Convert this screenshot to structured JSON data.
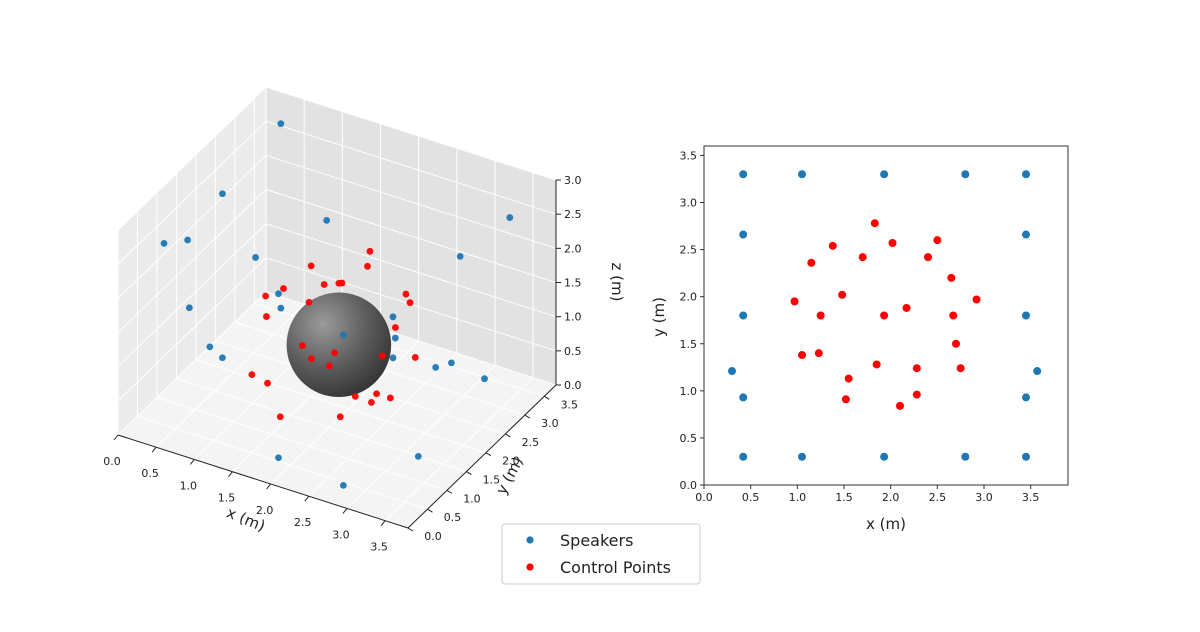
{
  "colors": {
    "speakers": "#1f77b4",
    "control": "#ff0000",
    "sphere": "#555555",
    "pane": "#f2f2f2",
    "grid": "#dddddd"
  },
  "legend": {
    "placement": "bottom-center",
    "items": [
      "Speakers",
      "Control Points"
    ]
  },
  "chart_data": [
    {
      "type": "scatter3d",
      "xlabel": "x (m)",
      "ylabel": "y (m)",
      "zlabel": "z (m)",
      "xlim": [
        0,
        3.8
      ],
      "ylim": [
        0,
        3.8
      ],
      "zlim": [
        0,
        3.0
      ],
      "xticks": [
        "0.0",
        "0.5",
        "1.0",
        "1.5",
        "2.0",
        "2.5",
        "3.0",
        "3.5"
      ],
      "yticks": [
        "0.0",
        "0.5",
        "1.0",
        "1.5",
        "2.0",
        "2.5",
        "3.0",
        "3.5"
      ],
      "zticks": [
        "0.0",
        "0.5",
        "1.0",
        "1.5",
        "2.0",
        "2.5",
        "3.0"
      ],
      "sphere": {
        "center": [
          1.95,
          1.85,
          1.0
        ],
        "radius": 0.9
      },
      "series": [
        {
          "name": "Speakers",
          "points": [
            [
              0.45,
              3.3,
              2.9
            ],
            [
              1.05,
              3.3,
              1.7
            ],
            [
              1.95,
              3.3,
              0.3
            ],
            [
              2.8,
              3.3,
              1.8
            ],
            [
              3.45,
              3.3,
              2.6
            ],
            [
              0.45,
              2.65,
              1.3
            ],
            [
              0.45,
              1.8,
              0.3
            ],
            [
              0.45,
              0.95,
              1.5
            ],
            [
              0.3,
              1.2,
              2.3
            ],
            [
              3.45,
              2.65,
              0.6
            ],
            [
              3.45,
              1.8,
              1.3
            ],
            [
              3.45,
              0.95,
              0.4
            ],
            [
              3.55,
              1.2,
              1.6
            ],
            [
              1.05,
              0.3,
              1.5
            ],
            [
              1.95,
              0.3,
              0.2
            ],
            [
              2.8,
              0.3,
              2.3
            ],
            [
              3.45,
              0.3,
              2.2
            ],
            [
              0.45,
              0.3,
              2.8
            ],
            [
              1.95,
              0.3,
              2.6
            ],
            [
              3.45,
              0.3,
              2.8
            ],
            [
              0.45,
              3.3,
              0.2
            ],
            [
              2.8,
              0.3,
              0.1
            ],
            [
              1.05,
              3.3,
              0.2
            ],
            [
              0.45,
              1.8,
              2.7
            ]
          ]
        },
        {
          "name": "Control Points",
          "points": [
            [
              1.85,
              2.78,
              1.6
            ],
            [
              2.5,
              2.6,
              1.4
            ],
            [
              1.4,
              2.55,
              1.3
            ],
            [
              2.0,
              2.55,
              2.0
            ],
            [
              1.7,
              2.42,
              1.5
            ],
            [
              2.4,
              2.42,
              1.1
            ],
            [
              1.15,
              2.35,
              0.7
            ],
            [
              2.65,
              2.2,
              1.8
            ],
            [
              0.95,
              1.95,
              1.0
            ],
            [
              1.5,
              2.02,
              1.9
            ],
            [
              2.9,
              1.95,
              1.1
            ],
            [
              2.15,
              1.88,
              0.3
            ],
            [
              1.25,
              1.8,
              1.6
            ],
            [
              1.92,
              1.8,
              0.9
            ],
            [
              2.65,
              1.8,
              0.5
            ],
            [
              2.7,
              1.5,
              1.3
            ],
            [
              1.05,
              1.38,
              0.5
            ],
            [
              1.22,
              1.4,
              1.7
            ],
            [
              1.85,
              1.28,
              1.9
            ],
            [
              2.75,
              1.25,
              0.9
            ],
            [
              2.28,
              1.24,
              0.4
            ],
            [
              1.55,
              1.13,
              0.2
            ],
            [
              2.28,
              0.96,
              1.3
            ],
            [
              1.5,
              0.9,
              0.8
            ],
            [
              2.1,
              0.85,
              1.4
            ],
            [
              1.95,
              1.85,
              1.9
            ],
            [
              1.6,
              1.6,
              1.0
            ],
            [
              2.3,
              2.0,
              0.2
            ]
          ]
        }
      ]
    },
    {
      "type": "scatter",
      "xlabel": "x (m)",
      "ylabel": "y (m)",
      "xlim": [
        0,
        3.9
      ],
      "ylim": [
        0,
        3.6
      ],
      "xticks": [
        0.0,
        0.5,
        1.0,
        1.5,
        2.0,
        2.5,
        3.0,
        3.5
      ],
      "yticks": [
        0.0,
        0.5,
        1.0,
        1.5,
        2.0,
        2.5,
        3.0,
        3.5
      ],
      "series": [
        {
          "name": "Speakers",
          "x": [
            0.42,
            1.05,
            1.93,
            2.8,
            3.45,
            0.42,
            3.45,
            0.42,
            3.45,
            0.3,
            3.57,
            0.42,
            3.45,
            0.42,
            1.05,
            1.93,
            2.8,
            3.45
          ],
          "y": [
            3.3,
            3.3,
            3.3,
            3.3,
            3.3,
            2.66,
            2.66,
            1.8,
            1.8,
            1.21,
            1.21,
            0.93,
            0.93,
            0.3,
            0.3,
            0.3,
            0.3,
            0.3
          ]
        },
        {
          "name": "Control Points",
          "x": [
            1.83,
            2.5,
            1.38,
            2.02,
            1.7,
            2.4,
            1.15,
            2.65,
            0.97,
            1.48,
            2.92,
            2.17,
            1.25,
            1.93,
            2.67,
            2.7,
            1.05,
            1.23,
            1.85,
            2.75,
            2.28,
            1.55,
            2.28,
            1.52,
            2.1
          ],
          "y": [
            2.78,
            2.6,
            2.54,
            2.57,
            2.42,
            2.42,
            2.36,
            2.2,
            1.95,
            2.02,
            1.97,
            1.88,
            1.8,
            1.8,
            1.8,
            1.5,
            1.38,
            1.4,
            1.28,
            1.24,
            1.24,
            1.13,
            0.96,
            0.91,
            0.84
          ]
        }
      ]
    }
  ]
}
